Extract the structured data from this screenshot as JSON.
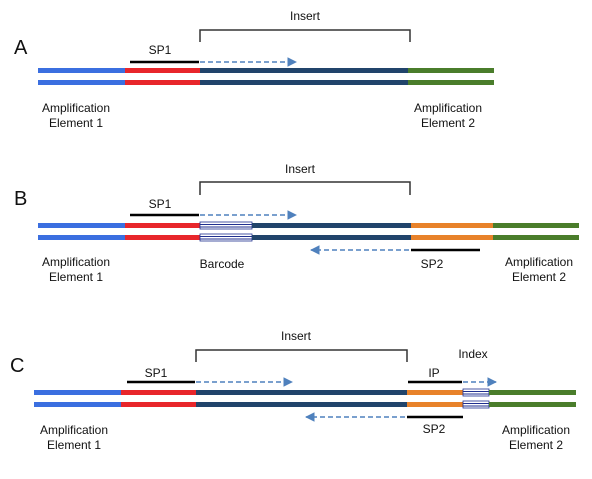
{
  "colors": {
    "amp1": "#3b6fe0",
    "sp1": "#e8262b",
    "insert": "#21446b",
    "amp2": "#4a7d2b",
    "sp2": "#e8822a",
    "arrow": "#4f81bd",
    "primer": "#000000",
    "barcode": "#1f2f8f"
  },
  "panels": {
    "a": {
      "letter": "A",
      "insert": "Insert",
      "sp1": "SP1",
      "amp1": [
        "Amplification",
        "Element 1"
      ],
      "amp2": [
        "Amplification",
        "Element 2"
      ]
    },
    "b": {
      "letter": "B",
      "insert": "Insert",
      "sp1": "SP1",
      "barcode": "Barcode",
      "sp2": "SP2",
      "amp1": [
        "Amplification",
        "Element 1"
      ],
      "amp2": [
        "Amplification",
        "Element 2"
      ]
    },
    "c": {
      "letter": "C",
      "insert": "Insert",
      "sp1": "SP1",
      "index": "Index",
      "ip": "IP",
      "sp2": "SP2",
      "amp1": [
        "Amplification",
        "Element 1"
      ],
      "amp2": [
        "Amplification",
        "Element 2"
      ]
    }
  }
}
